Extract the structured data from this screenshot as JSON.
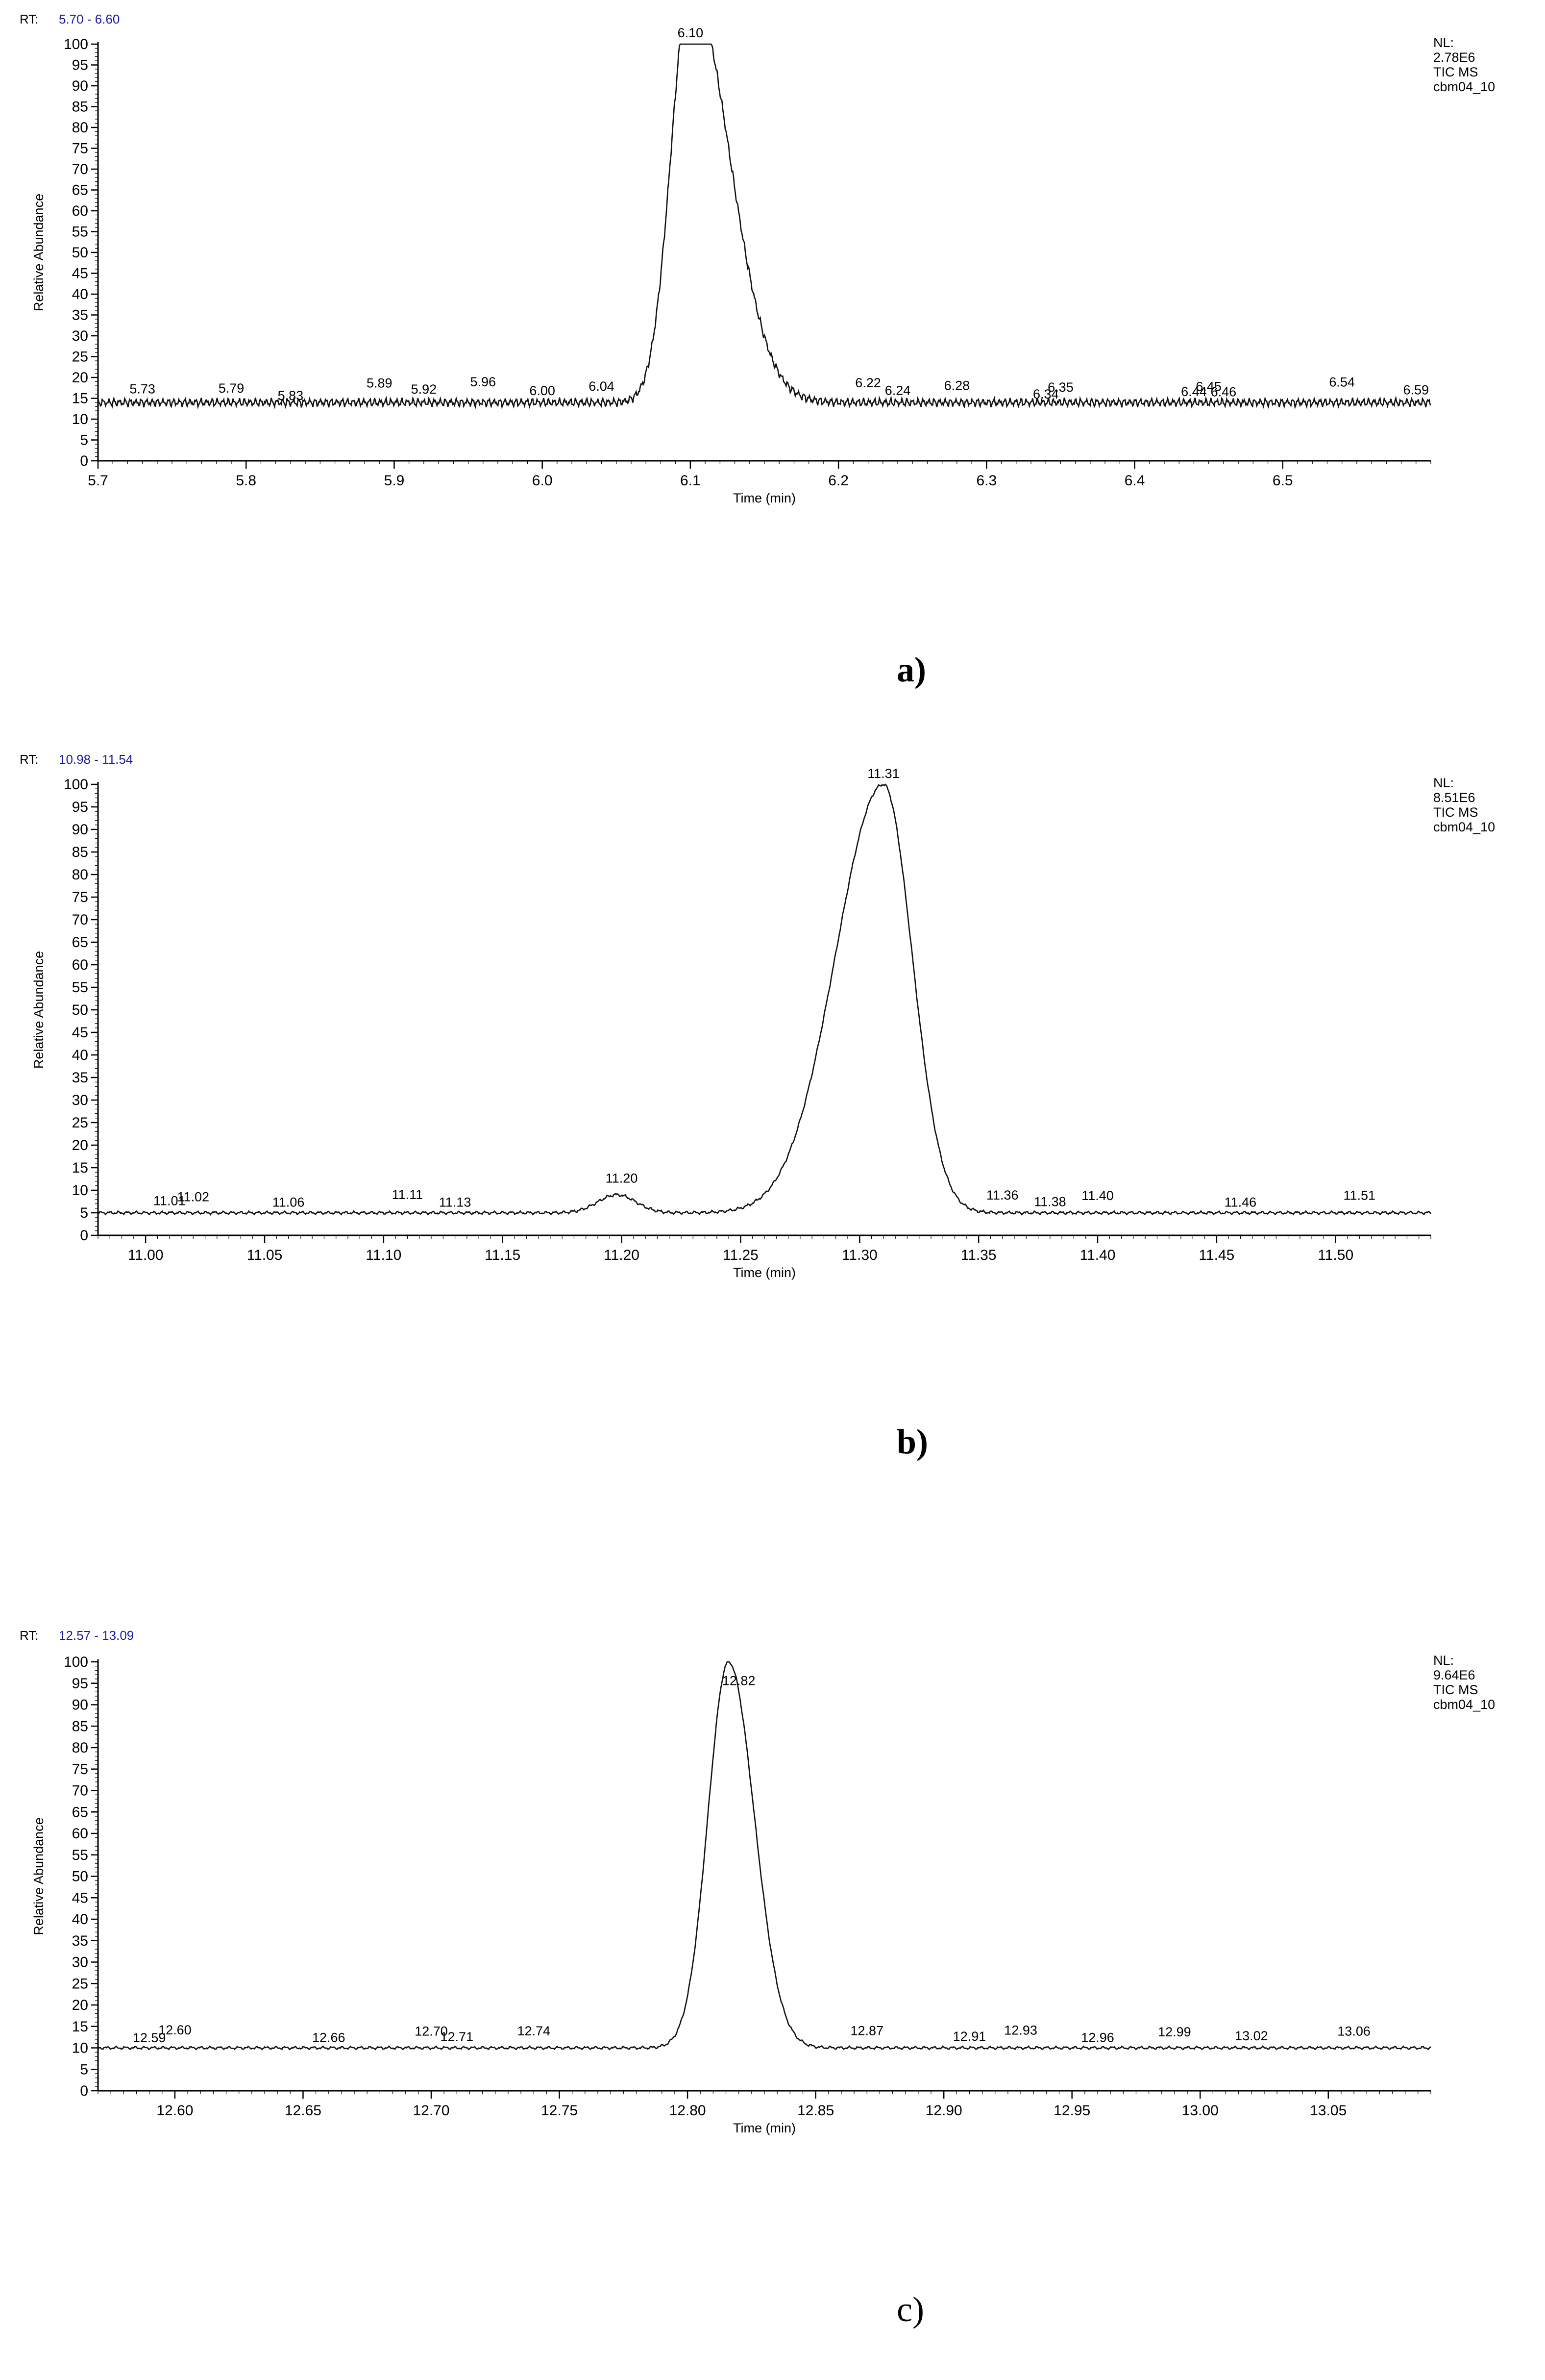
{
  "chart_data": [
    {
      "type": "line",
      "panel_label": "a)",
      "rt_prefix": "RT:",
      "rt_range": "5.70 - 6.60",
      "nl_lines": [
        "NL:",
        "2.78E6",
        "TIC  MS",
        "cbm04_10"
      ],
      "xlabel": "Time (min)",
      "ylabel": "Relative Abundance",
      "xlim": [
        5.7,
        6.6
      ],
      "ylim": [
        0,
        100
      ],
      "x_ticks": [
        5.7,
        5.8,
        5.9,
        6.0,
        6.1,
        6.2,
        6.3,
        6.4,
        6.5
      ],
      "x_tick_labels": [
        "5.7",
        "5.8",
        "5.9",
        "6.0",
        "6.1",
        "6.2",
        "6.3",
        "6.4",
        "6.5"
      ],
      "y_ticks": [
        0,
        5,
        10,
        15,
        20,
        25,
        30,
        35,
        40,
        45,
        50,
        55,
        60,
        65,
        70,
        75,
        80,
        85,
        90,
        95,
        100
      ],
      "baseline": 14,
      "noise": 1.2,
      "peaks": [
        {
          "center": 6.1,
          "height": 100,
          "sigma_left": 0.013,
          "sigma_right": 0.026
        }
      ],
      "annotations": [
        {
          "x": 5.73,
          "label": "5.73"
        },
        {
          "x": 5.79,
          "label": "5.79"
        },
        {
          "x": 5.83,
          "label": "5.83"
        },
        {
          "x": 5.89,
          "label": "5.89"
        },
        {
          "x": 5.92,
          "label": "5.92"
        },
        {
          "x": 5.96,
          "label": "5.96"
        },
        {
          "x": 6.0,
          "label": "6.00"
        },
        {
          "x": 6.04,
          "label": "6.04"
        },
        {
          "x": 6.1,
          "label": "6.10"
        },
        {
          "x": 6.22,
          "label": "6.22"
        },
        {
          "x": 6.24,
          "label": "6.24"
        },
        {
          "x": 6.28,
          "label": "6.28"
        },
        {
          "x": 6.34,
          "label": "6.34"
        },
        {
          "x": 6.35,
          "label": "6.35"
        },
        {
          "x": 6.44,
          "label": "6.44"
        },
        {
          "x": 6.45,
          "label": "6.45"
        },
        {
          "x": 6.46,
          "label": "6.46"
        },
        {
          "x": 6.54,
          "label": "6.54"
        },
        {
          "x": 6.59,
          "label": "6.59"
        }
      ]
    },
    {
      "type": "line",
      "panel_label": "b)",
      "rt_prefix": "RT:",
      "rt_range": "10.98 - 11.54",
      "nl_lines": [
        "NL:",
        "8.51E6",
        "TIC  MS",
        "cbm04_10"
      ],
      "xlabel": "Time (min)",
      "ylabel": "Relative Abundance",
      "xlim": [
        10.98,
        11.54
      ],
      "ylim": [
        0,
        100
      ],
      "x_ticks": [
        11.0,
        11.05,
        11.1,
        11.15,
        11.2,
        11.25,
        11.3,
        11.35,
        11.4,
        11.45,
        11.5
      ],
      "x_tick_labels": [
        "11.00",
        "11.05",
        "11.10",
        "11.15",
        "11.20",
        "11.25",
        "11.30",
        "11.35",
        "11.40",
        "11.45",
        "11.50"
      ],
      "y_ticks": [
        0,
        5,
        10,
        15,
        20,
        25,
        30,
        35,
        40,
        45,
        50,
        55,
        60,
        65,
        70,
        75,
        80,
        85,
        90,
        95,
        100
      ],
      "baseline": 5,
      "noise": 0.4,
      "peaks": [
        {
          "center": 11.31,
          "height": 95,
          "sigma_left": 0.02,
          "sigma_right": 0.012
        },
        {
          "center": 11.198,
          "height": 4,
          "sigma_left": 0.008,
          "sigma_right": 0.008
        }
      ],
      "annotations": [
        {
          "x": 11.01,
          "label": "11.01"
        },
        {
          "x": 11.02,
          "label": "11.02"
        },
        {
          "x": 11.06,
          "label": "11.06"
        },
        {
          "x": 11.11,
          "label": "11.11"
        },
        {
          "x": 11.13,
          "label": "11.13"
        },
        {
          "x": 11.2,
          "label": "11.20"
        },
        {
          "x": 11.31,
          "label": "11.31"
        },
        {
          "x": 11.36,
          "label": "11.36"
        },
        {
          "x": 11.38,
          "label": "11.38"
        },
        {
          "x": 11.4,
          "label": "11.40"
        },
        {
          "x": 11.46,
          "label": "11.46"
        },
        {
          "x": 11.51,
          "label": "11.51"
        }
      ]
    },
    {
      "type": "line",
      "panel_label": "c)",
      "rt_prefix": "RT:",
      "rt_range": "12.57 - 13.09",
      "nl_lines": [
        "NL:",
        "9.64E6",
        "TIC  MS",
        "cbm04_10"
      ],
      "xlabel": "Time (min)",
      "ylabel": "Relative Abundance",
      "xlim": [
        12.57,
        13.09
      ],
      "ylim": [
        0,
        100
      ],
      "x_ticks": [
        12.6,
        12.65,
        12.7,
        12.75,
        12.8,
        12.85,
        12.9,
        12.95,
        13.0,
        13.05
      ],
      "x_tick_labels": [
        "12.60",
        "12.65",
        "12.70",
        "12.75",
        "12.80",
        "12.85",
        "12.90",
        "12.95",
        "13.00",
        "13.05"
      ],
      "y_ticks": [
        0,
        5,
        10,
        15,
        20,
        25,
        30,
        35,
        40,
        45,
        50,
        55,
        60,
        65,
        70,
        75,
        80,
        85,
        90,
        95,
        100
      ],
      "baseline": 10,
      "noise": 0.4,
      "peaks": [
        {
          "center": 12.816,
          "height": 90,
          "sigma_left": 0.008,
          "sigma_right": 0.01
        }
      ],
      "annotations": [
        {
          "x": 12.59,
          "label": "12.59"
        },
        {
          "x": 12.6,
          "label": "12.60"
        },
        {
          "x": 12.66,
          "label": "12.66"
        },
        {
          "x": 12.7,
          "label": "12.70"
        },
        {
          "x": 12.71,
          "label": "12.71"
        },
        {
          "x": 12.74,
          "label": "12.74"
        },
        {
          "x": 12.82,
          "label": "12.82"
        },
        {
          "x": 12.87,
          "label": "12.87"
        },
        {
          "x": 12.91,
          "label": "12.91"
        },
        {
          "x": 12.93,
          "label": "12.93"
        },
        {
          "x": 12.96,
          "label": "12.96"
        },
        {
          "x": 12.99,
          "label": "12.99"
        },
        {
          "x": 13.02,
          "label": "13.02"
        },
        {
          "x": 13.06,
          "label": "13.06"
        }
      ]
    }
  ]
}
